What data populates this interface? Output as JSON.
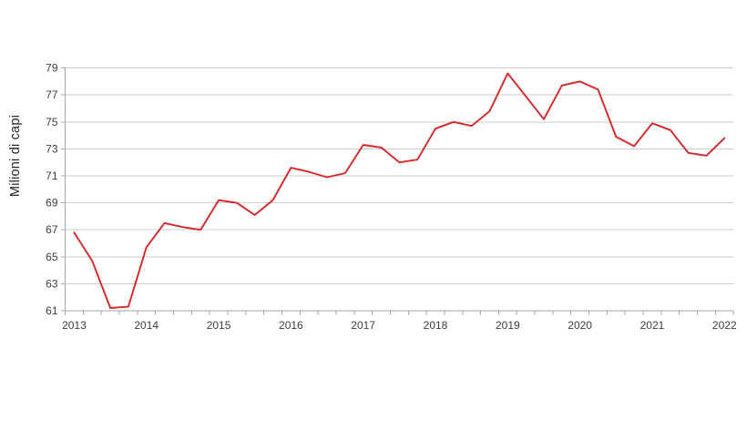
{
  "figure": {
    "background": "#ffffff"
  },
  "chart_data": {
    "type": "line",
    "title": "",
    "xlabel": "",
    "ylabel": "Milioni di capi",
    "frequency": "quarterly",
    "ylim": [
      61,
      79
    ],
    "y_ticks": [
      61,
      63,
      65,
      67,
      69,
      71,
      73,
      75,
      77,
      79
    ],
    "x_year_labels": [
      "2013",
      "2014",
      "2015",
      "2016",
      "2017",
      "2018",
      "2019",
      "2020",
      "2021",
      "2022"
    ],
    "grid": true,
    "legend_position": "none",
    "series": [
      {
        "name": "Milioni di capi",
        "color": "#d62728",
        "x": [
          "2013-Q1",
          "2013-Q2",
          "2013-Q3",
          "2013-Q4",
          "2014-Q1",
          "2014-Q2",
          "2014-Q3",
          "2014-Q4",
          "2015-Q1",
          "2015-Q2",
          "2015-Q3",
          "2015-Q4",
          "2016-Q1",
          "2016-Q2",
          "2016-Q3",
          "2016-Q4",
          "2017-Q1",
          "2017-Q2",
          "2017-Q3",
          "2017-Q4",
          "2018-Q1",
          "2018-Q2",
          "2018-Q3",
          "2018-Q4",
          "2019-Q1",
          "2019-Q2",
          "2019-Q3",
          "2019-Q4",
          "2020-Q1",
          "2020-Q2",
          "2020-Q3",
          "2020-Q4",
          "2021-Q1",
          "2021-Q2",
          "2021-Q3",
          "2021-Q4",
          "2022-Q1"
        ],
        "values": [
          66.8,
          64.7,
          61.2,
          61.3,
          65.7,
          67.5,
          67.2,
          67.0,
          69.2,
          69.0,
          68.1,
          69.2,
          71.6,
          71.3,
          70.9,
          71.2,
          73.3,
          73.1,
          72.0,
          72.2,
          74.5,
          75.0,
          74.7,
          75.8,
          78.6,
          76.9,
          75.2,
          77.7,
          78.0,
          77.4,
          73.9,
          73.2,
          74.9,
          74.4,
          72.7,
          72.5,
          73.8
        ]
      }
    ]
  },
  "colors": {
    "line": "#d62728",
    "gridline": "#cbcbcb",
    "axis": "#a6a6a6",
    "tick_label": "#3d3d3d",
    "axis_title": "#262626",
    "background": "#ffffff"
  }
}
